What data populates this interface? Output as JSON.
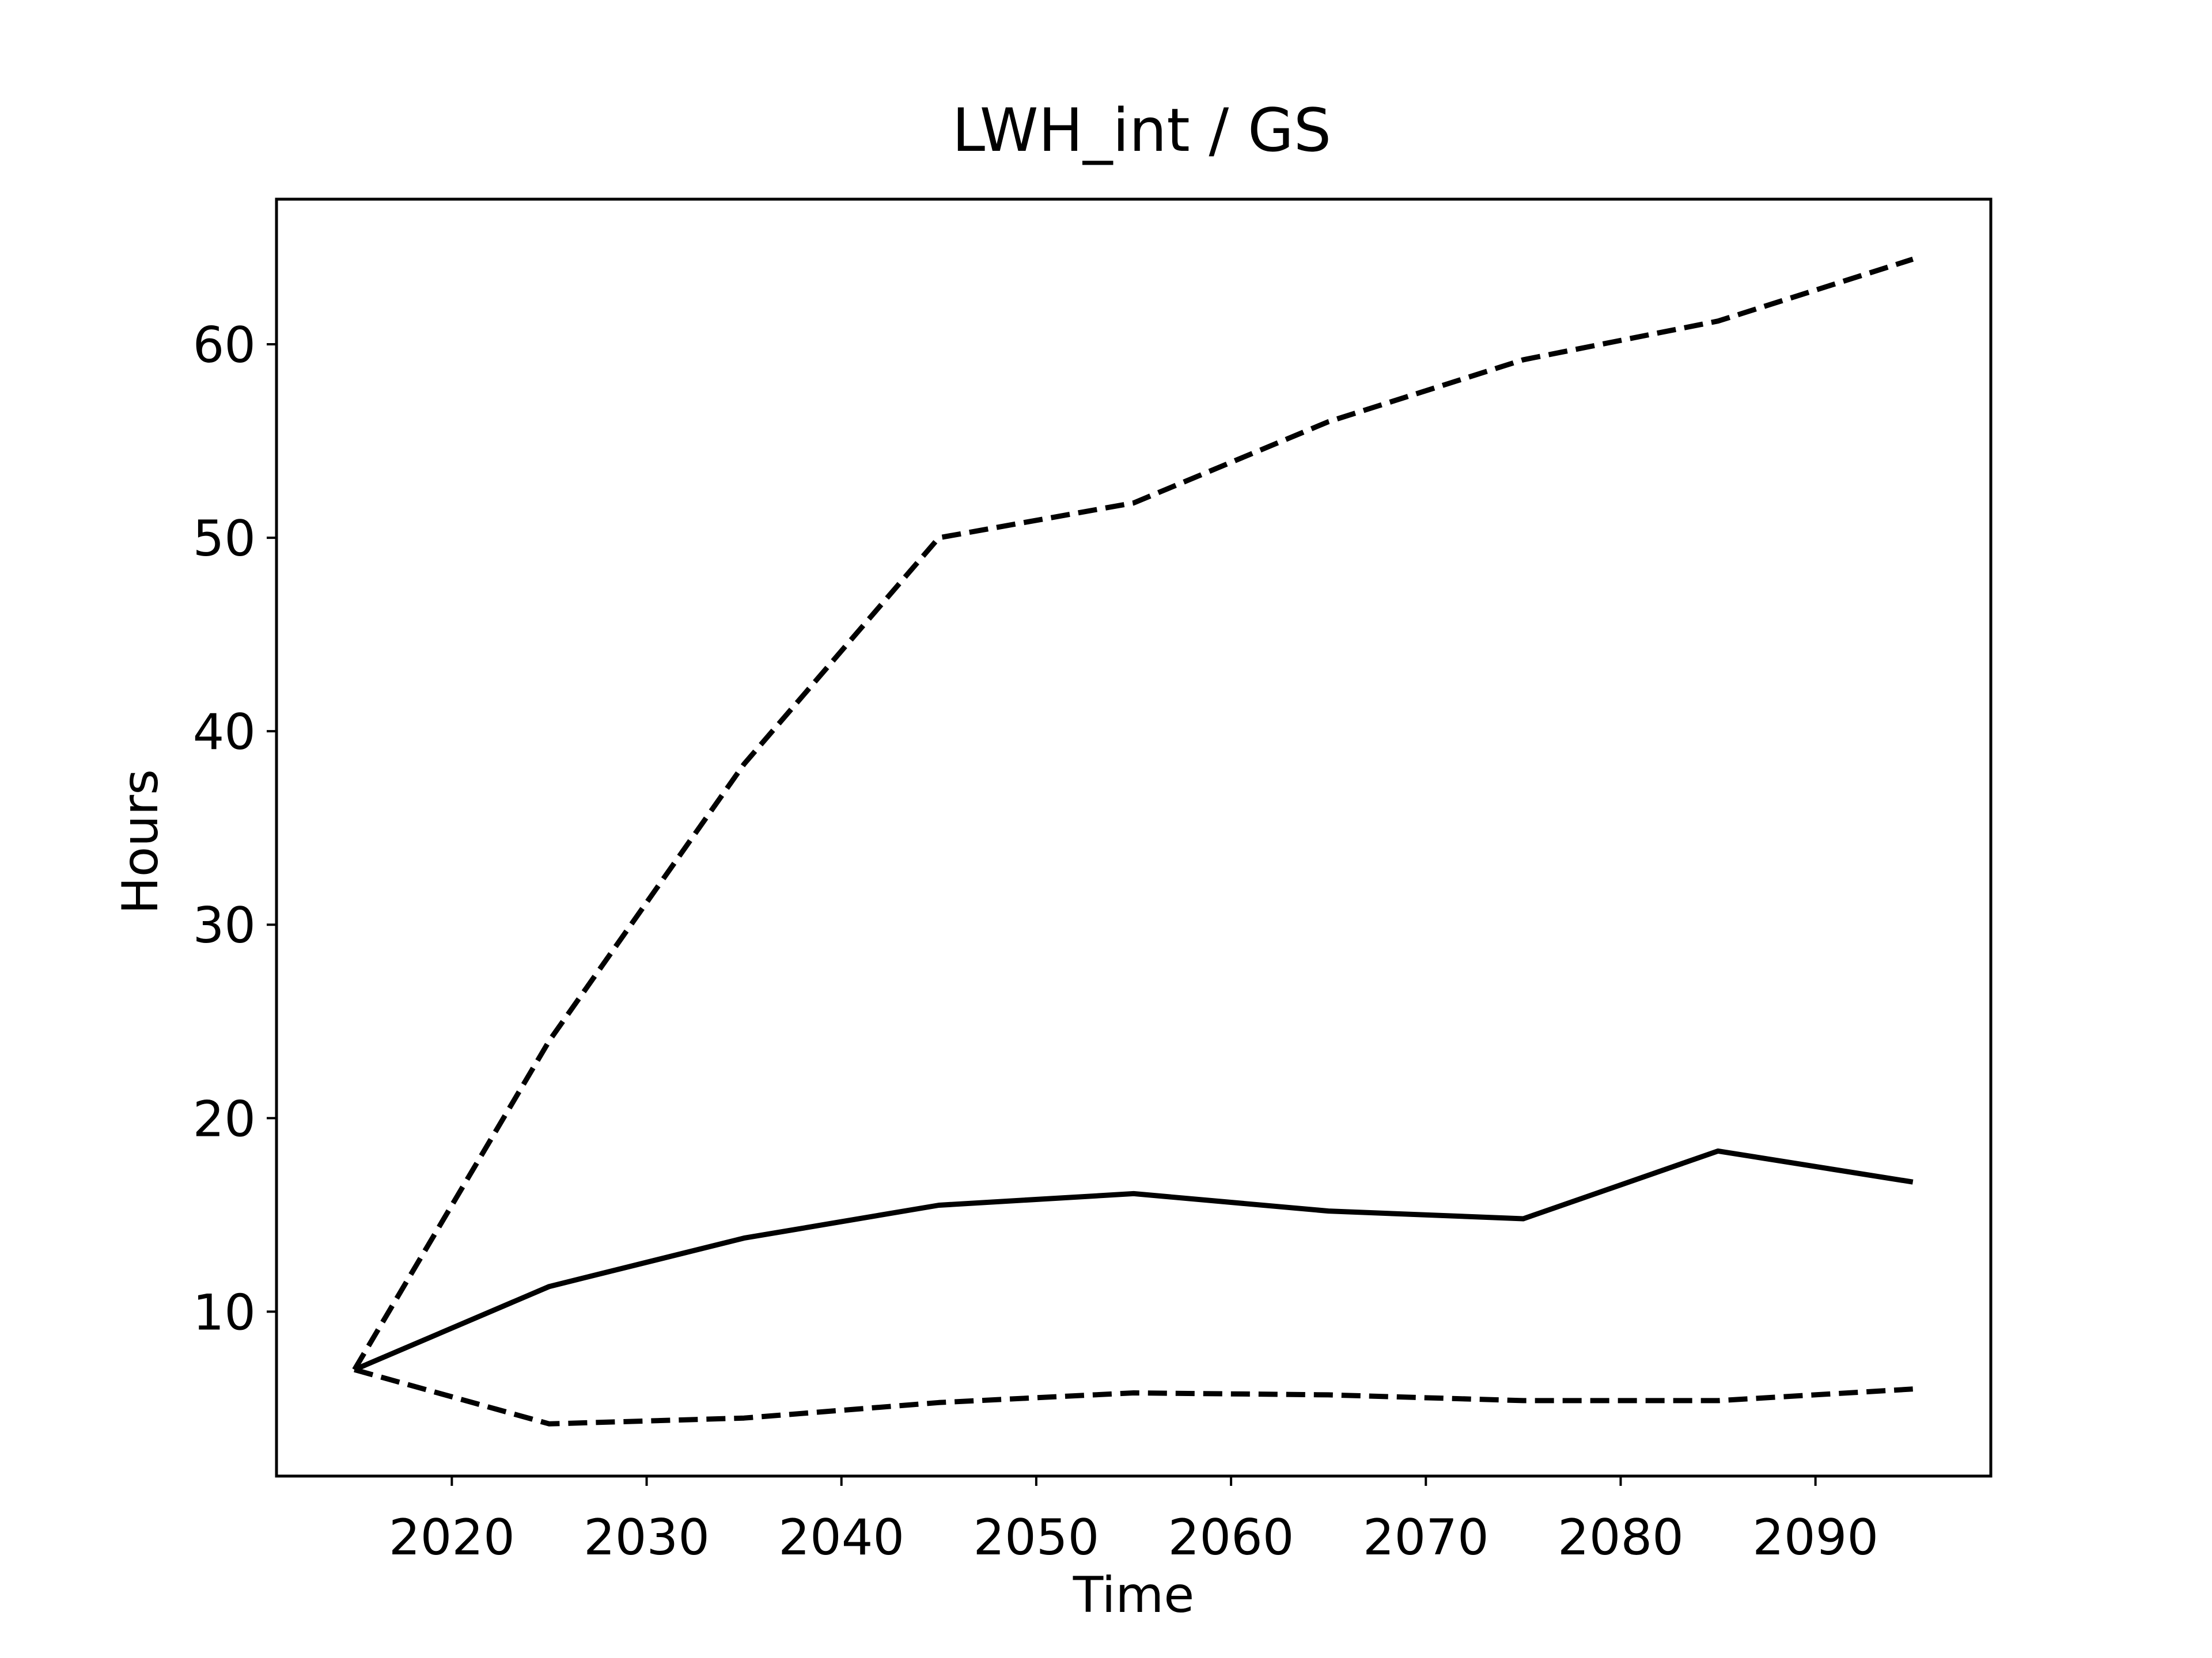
{
  "chart_data": {
    "type": "line",
    "title": "LWH_int / GS",
    "xlabel": "Time",
    "ylabel": "Hours",
    "xlim": [
      2011,
      2099
    ],
    "ylim": [
      1.5,
      67.5
    ],
    "xticks": [
      2020,
      2030,
      2040,
      2050,
      2060,
      2070,
      2080,
      2090
    ],
    "yticks": [
      10,
      20,
      30,
      40,
      50,
      60
    ],
    "grid": false,
    "legend": "none",
    "series": [
      {
        "style": "solid",
        "color": "#000000",
        "x": [
          2015,
          2025,
          2035,
          2045,
          2055,
          2065,
          2075,
          2085,
          2095
        ],
        "y": [
          7.0,
          11.3,
          13.8,
          15.5,
          16.1,
          15.2,
          14.8,
          18.3,
          16.7
        ]
      },
      {
        "style": "dashed",
        "color": "#000000",
        "x": [
          2015,
          2025,
          2035,
          2045,
          2055,
          2065,
          2075,
          2085,
          2095
        ],
        "y": [
          7.0,
          24.0,
          38.3,
          50.0,
          51.8,
          56.0,
          59.2,
          61.2,
          64.4
        ]
      },
      {
        "style": "dashed",
        "color": "#000000",
        "x": [
          2015,
          2025,
          2035,
          2045,
          2055,
          2065,
          2075,
          2085,
          2095
        ],
        "y": [
          7.0,
          4.2,
          4.5,
          5.3,
          5.8,
          5.7,
          5.4,
          5.4,
          6.0
        ]
      }
    ]
  }
}
